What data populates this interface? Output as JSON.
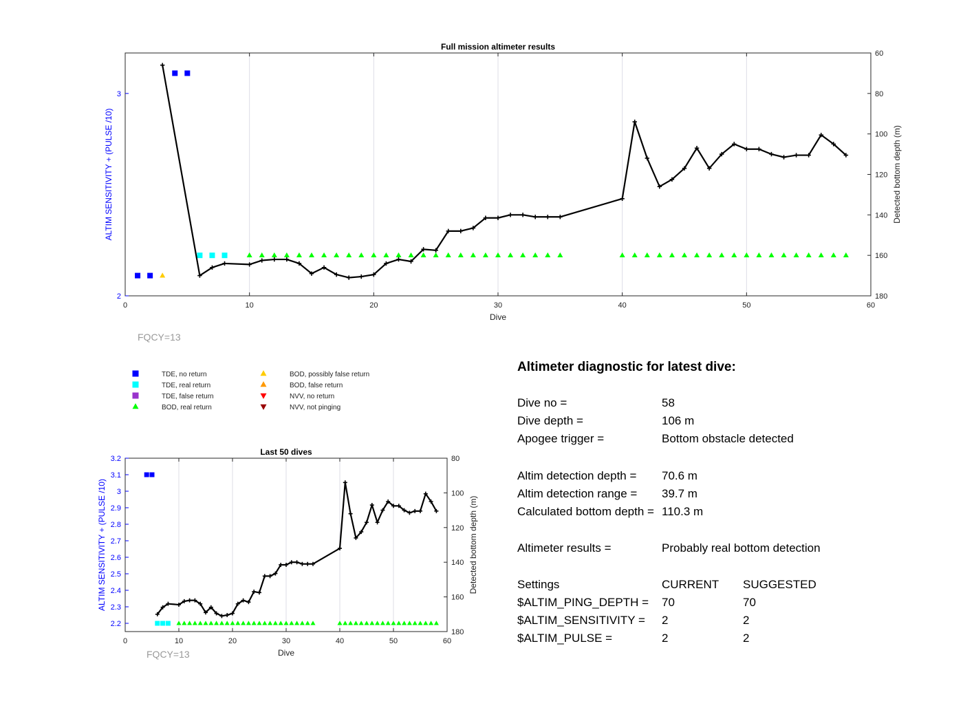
{
  "chart_data": [
    {
      "type": "scatter",
      "title": "Full mission altimeter results",
      "xlabel": "Dive",
      "ylabel": "ALTIM SENSITIVITY + (PULSE /10)",
      "y2label": "Detected bottom depth (m)",
      "xlim": [
        0,
        60
      ],
      "ylim": [
        2,
        3.2
      ],
      "y2lim": [
        60,
        180
      ],
      "y2_reversed": true,
      "xticks": [
        0,
        10,
        20,
        30,
        40,
        50,
        60
      ],
      "yticks": [
        2,
        3
      ],
      "y2ticks": [
        60,
        80,
        100,
        120,
        140,
        160,
        180
      ],
      "grid": "vertical",
      "note": "FQCY=13",
      "series": [
        {
          "name": "TDE, no return",
          "marker": "square",
          "color": "#0000ff",
          "points": [
            [
              1,
              2.1
            ],
            [
              2,
              2.1
            ],
            [
              4,
              3.1
            ],
            [
              5,
              3.1
            ]
          ]
        },
        {
          "name": "TDE, real return",
          "marker": "square",
          "color": "#00ffff",
          "points": [
            [
              6,
              2.2
            ],
            [
              7,
              2.2
            ],
            [
              8,
              2.2
            ]
          ]
        },
        {
          "name": "BOD, possibly false return",
          "marker": "triangle-up",
          "color": "#ffcc00",
          "points": [
            [
              3,
              2.1
            ]
          ]
        },
        {
          "name": "BOD, real return",
          "marker": "triangle-up",
          "color": "#00ff00",
          "points": [
            [
              10,
              2.2
            ],
            [
              11,
              2.2
            ],
            [
              12,
              2.2
            ],
            [
              13,
              2.2
            ],
            [
              14,
              2.2
            ],
            [
              15,
              2.2
            ],
            [
              16,
              2.2
            ],
            [
              17,
              2.2
            ],
            [
              18,
              2.2
            ],
            [
              19,
              2.2
            ],
            [
              20,
              2.2
            ],
            [
              21,
              2.2
            ],
            [
              22,
              2.2
            ],
            [
              23,
              2.2
            ],
            [
              24,
              2.2
            ],
            [
              25,
              2.2
            ],
            [
              26,
              2.2
            ],
            [
              27,
              2.2
            ],
            [
              28,
              2.2
            ],
            [
              29,
              2.2
            ],
            [
              30,
              2.2
            ],
            [
              31,
              2.2
            ],
            [
              32,
              2.2
            ],
            [
              33,
              2.2
            ],
            [
              34,
              2.2
            ],
            [
              35,
              2.2
            ],
            [
              40,
              2.2
            ],
            [
              41,
              2.2
            ],
            [
              42,
              2.2
            ],
            [
              43,
              2.2
            ],
            [
              44,
              2.2
            ],
            [
              45,
              2.2
            ],
            [
              46,
              2.2
            ],
            [
              47,
              2.2
            ],
            [
              48,
              2.2
            ],
            [
              49,
              2.2
            ],
            [
              50,
              2.2
            ],
            [
              51,
              2.2
            ],
            [
              52,
              2.2
            ],
            [
              53,
              2.2
            ],
            [
              54,
              2.2
            ],
            [
              55,
              2.2
            ],
            [
              56,
              2.2
            ],
            [
              57,
              2.2
            ],
            [
              58,
              2.2
            ]
          ]
        },
        {
          "name": "Detected bottom depth",
          "axis": "right",
          "marker": "plus-line",
          "color": "#000000",
          "points": [
            [
              3,
              66
            ],
            [
              6,
              170
            ],
            [
              7,
              166
            ],
            [
              8,
              164
            ],
            [
              10,
              164.5
            ],
            [
              11,
              162.5
            ],
            [
              12,
              162
            ],
            [
              13,
              162
            ],
            [
              14,
              164
            ],
            [
              15,
              169
            ],
            [
              16,
              166
            ],
            [
              17,
              169.5
            ],
            [
              18,
              171
            ],
            [
              19,
              170.5
            ],
            [
              20,
              169.5
            ],
            [
              21,
              164
            ],
            [
              22,
              162
            ],
            [
              23,
              163
            ],
            [
              24,
              157
            ],
            [
              25,
              157.5
            ],
            [
              26,
              148
            ],
            [
              27,
              148
            ],
            [
              28,
              146.5
            ],
            [
              29,
              141.5
            ],
            [
              30,
              141.5
            ],
            [
              31,
              140
            ],
            [
              32,
              140
            ],
            [
              33,
              141
            ],
            [
              34,
              141
            ],
            [
              35,
              141
            ],
            [
              40,
              132
            ],
            [
              41,
              94
            ],
            [
              42,
              112
            ],
            [
              43,
              126
            ],
            [
              44,
              122.5
            ],
            [
              45,
              117
            ],
            [
              46,
              107
            ],
            [
              47,
              117
            ],
            [
              48,
              110
            ],
            [
              49,
              105
            ],
            [
              50,
              107.5
            ],
            [
              51,
              107.5
            ],
            [
              52,
              110
            ],
            [
              53,
              111.5
            ],
            [
              54,
              110.5
            ],
            [
              55,
              110.5
            ],
            [
              56,
              100.5
            ],
            [
              57,
              105
            ],
            [
              58,
              110.5
            ]
          ]
        }
      ]
    },
    {
      "type": "scatter",
      "title": "Last 50 dives",
      "xlabel": "Dive",
      "ylabel": "ALTIM SENSITIVITY + (PULSE /10)",
      "y2label": "Detected bottom depth (m)",
      "xlim": [
        0,
        60
      ],
      "ylim": [
        2.15,
        3.2
      ],
      "y2lim": [
        80,
        180
      ],
      "y2_reversed": true,
      "xticks": [
        0,
        10,
        20,
        30,
        40,
        50,
        60
      ],
      "yticks": [
        2.2,
        2.3,
        2.4,
        2.5,
        2.6,
        2.7,
        2.8,
        2.9,
        3,
        3.1,
        3.2
      ],
      "y2ticks": [
        80,
        100,
        120,
        140,
        160,
        180
      ],
      "grid": "vertical",
      "note": "FQCY=13",
      "series": [
        {
          "name": "TDE, no return",
          "marker": "square",
          "color": "#0000ff",
          "points": [
            [
              4,
              3.1
            ],
            [
              5,
              3.1
            ]
          ]
        },
        {
          "name": "TDE, real return",
          "marker": "square",
          "color": "#00ffff",
          "points": [
            [
              6,
              2.2
            ],
            [
              7,
              2.2
            ],
            [
              8,
              2.2
            ]
          ]
        },
        {
          "name": "BOD, real return",
          "marker": "triangle-up",
          "color": "#00ff00",
          "points": [
            [
              10,
              2.2
            ],
            [
              11,
              2.2
            ],
            [
              12,
              2.2
            ],
            [
              13,
              2.2
            ],
            [
              14,
              2.2
            ],
            [
              15,
              2.2
            ],
            [
              16,
              2.2
            ],
            [
              17,
              2.2
            ],
            [
              18,
              2.2
            ],
            [
              19,
              2.2
            ],
            [
              20,
              2.2
            ],
            [
              21,
              2.2
            ],
            [
              22,
              2.2
            ],
            [
              23,
              2.2
            ],
            [
              24,
              2.2
            ],
            [
              25,
              2.2
            ],
            [
              26,
              2.2
            ],
            [
              27,
              2.2
            ],
            [
              28,
              2.2
            ],
            [
              29,
              2.2
            ],
            [
              30,
              2.2
            ],
            [
              31,
              2.2
            ],
            [
              32,
              2.2
            ],
            [
              33,
              2.2
            ],
            [
              34,
              2.2
            ],
            [
              35,
              2.2
            ],
            [
              40,
              2.2
            ],
            [
              41,
              2.2
            ],
            [
              42,
              2.2
            ],
            [
              43,
              2.2
            ],
            [
              44,
              2.2
            ],
            [
              45,
              2.2
            ],
            [
              46,
              2.2
            ],
            [
              47,
              2.2
            ],
            [
              48,
              2.2
            ],
            [
              49,
              2.2
            ],
            [
              50,
              2.2
            ],
            [
              51,
              2.2
            ],
            [
              52,
              2.2
            ],
            [
              53,
              2.2
            ],
            [
              54,
              2.2
            ],
            [
              55,
              2.2
            ],
            [
              56,
              2.2
            ],
            [
              57,
              2.2
            ],
            [
              58,
              2.2
            ]
          ]
        },
        {
          "name": "Detected bottom depth",
          "axis": "right",
          "marker": "plus-line",
          "color": "#000000",
          "points": [
            [
              6,
              170
            ],
            [
              7,
              166
            ],
            [
              8,
              164
            ],
            [
              10,
              164.5
            ],
            [
              11,
              162.5
            ],
            [
              12,
              162
            ],
            [
              13,
              162
            ],
            [
              14,
              164
            ],
            [
              15,
              169
            ],
            [
              16,
              166
            ],
            [
              17,
              169.5
            ],
            [
              18,
              171
            ],
            [
              19,
              170.5
            ],
            [
              20,
              169.5
            ],
            [
              21,
              164
            ],
            [
              22,
              162
            ],
            [
              23,
              163
            ],
            [
              24,
              157
            ],
            [
              25,
              157.5
            ],
            [
              26,
              148
            ],
            [
              27,
              148
            ],
            [
              28,
              146.5
            ],
            [
              29,
              141.5
            ],
            [
              30,
              141.5
            ],
            [
              31,
              140
            ],
            [
              32,
              140
            ],
            [
              33,
              141
            ],
            [
              34,
              141
            ],
            [
              35,
              141
            ],
            [
              40,
              132
            ],
            [
              41,
              94
            ],
            [
              42,
              112
            ],
            [
              43,
              126
            ],
            [
              44,
              122.5
            ],
            [
              45,
              117
            ],
            [
              46,
              107
            ],
            [
              47,
              117
            ],
            [
              48,
              110
            ],
            [
              49,
              105
            ],
            [
              50,
              107.5
            ],
            [
              51,
              107.5
            ],
            [
              52,
              110
            ],
            [
              53,
              111.5
            ],
            [
              54,
              110.5
            ],
            [
              55,
              110.5
            ],
            [
              56,
              100.5
            ],
            [
              57,
              105
            ],
            [
              58,
              110.5
            ]
          ]
        }
      ]
    }
  ],
  "legend": [
    {
      "label": "TDE, no return",
      "marker": "square",
      "color": "#0000ff"
    },
    {
      "label": "TDE, real return",
      "marker": "square",
      "color": "#00ffff"
    },
    {
      "label": "TDE, false return",
      "marker": "square",
      "color": "#9933cc"
    },
    {
      "label": "BOD, real return",
      "marker": "triangle-up",
      "color": "#00ff00"
    },
    {
      "label": "BOD, possibly false return",
      "marker": "triangle-up",
      "color": "#ffcc00"
    },
    {
      "label": "BOD, false return",
      "marker": "triangle-up",
      "color": "#ff9900"
    },
    {
      "label": "NVV, no return",
      "marker": "triangle-down",
      "color": "#ff0000"
    },
    {
      "label": "NVV, not pinging",
      "marker": "triangle-down",
      "color": "#990000"
    }
  ],
  "diagnostic": {
    "heading": "Altimeter diagnostic for latest dive:",
    "rows": [
      {
        "label": "Dive no =",
        "value": "58"
      },
      {
        "label": "Dive depth =",
        "value": "106 m"
      },
      {
        "label": "Apogee trigger =",
        "value": "Bottom obstacle detected"
      },
      {
        "label": "Altim detection depth =",
        "value": "70.6 m"
      },
      {
        "label": "Altim detection range =",
        "value": "39.7 m"
      },
      {
        "label": "Calculated bottom depth =",
        "value": "110.3 m"
      },
      {
        "label": "Altimeter results =",
        "value": "Probably real bottom detection"
      }
    ],
    "settings": {
      "header": [
        "Settings",
        "CURRENT",
        "SUGGESTED"
      ],
      "rows": [
        [
          "$ALTIM_PING_DEPTH =",
          "70",
          "70"
        ],
        [
          "$ALTIM_SENSITIVITY =",
          "2",
          "2"
        ],
        [
          "$ALTIM_PULSE =",
          "2",
          "2"
        ]
      ]
    }
  }
}
